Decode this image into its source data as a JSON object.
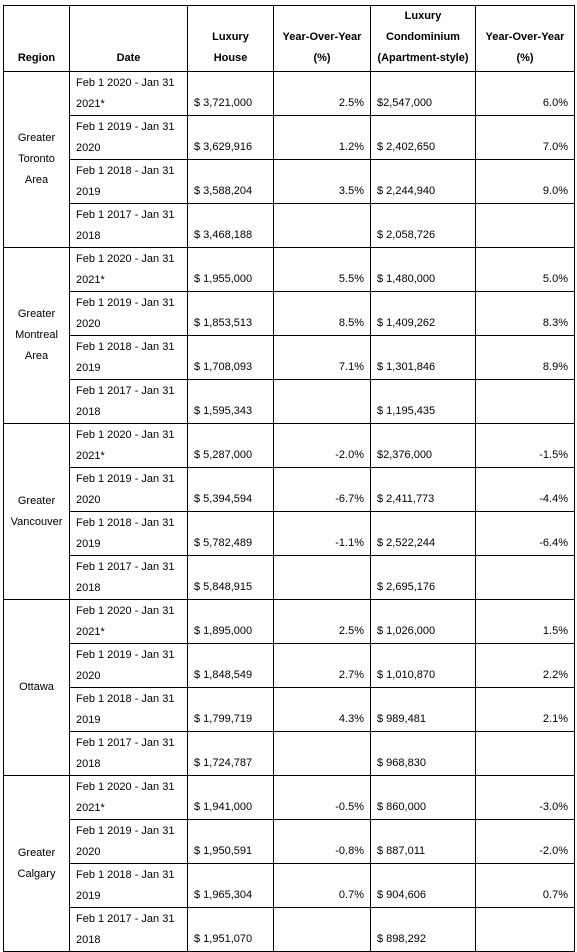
{
  "headers": {
    "region": "Region",
    "date": "Date",
    "house": "Luxury House",
    "house_yoy": [
      "Year-Over-Year",
      "(%)"
    ],
    "condo": [
      "Luxury",
      "Condominium",
      "(Apartment-style)"
    ],
    "condo_yoy": [
      "Year-Over-Year",
      "(%)"
    ]
  },
  "regions": [
    {
      "name": [
        "Greater",
        "Toronto",
        "Area"
      ],
      "rows": [
        {
          "date": [
            "Feb 1 2020 - Jan 31",
            "2021*"
          ],
          "house": "$ 3,721,000",
          "house_yoy": "2.5%",
          "condo": "$2,547,000",
          "condo_yoy": "6.0%"
        },
        {
          "date": [
            "Feb 1 2019 - Jan 31",
            "2020"
          ],
          "house": "$ 3,629,916",
          "house_yoy": "1.2%",
          "condo": "$ 2,402,650",
          "condo_yoy": "7.0%"
        },
        {
          "date": [
            "Feb 1 2018 - Jan 31",
            "2019"
          ],
          "house": "$ 3,588,204",
          "house_yoy": "3.5%",
          "condo": "$ 2,244,940",
          "condo_yoy": "9.0%"
        },
        {
          "date": [
            "Feb 1 2017 - Jan 31",
            "2018"
          ],
          "house": "$ 3,468,188",
          "house_yoy": "",
          "condo": "$ 2,058,726",
          "condo_yoy": ""
        }
      ]
    },
    {
      "name": [
        "Greater",
        "Montreal",
        "Area"
      ],
      "rows": [
        {
          "date": [
            "Feb 1 2020 - Jan 31",
            "2021*"
          ],
          "house": "$ 1,955,000",
          "house_yoy": "5.5%",
          "condo": "$ 1,480,000",
          "condo_yoy": "5.0%"
        },
        {
          "date": [
            "Feb 1 2019 - Jan 31",
            "2020"
          ],
          "house": "$ 1,853,513",
          "house_yoy": "8.5%",
          "condo": "$ 1,409,262",
          "condo_yoy": "8.3%"
        },
        {
          "date": [
            "Feb 1 2018 - Jan 31",
            "2019"
          ],
          "house": "$ 1,708,093",
          "house_yoy": "7.1%",
          "condo": "$ 1,301,846",
          "condo_yoy": "8.9%"
        },
        {
          "date": [
            "Feb 1 2017 - Jan 31",
            "2018"
          ],
          "house": "$ 1,595,343",
          "house_yoy": "",
          "condo": "$ 1,195,435",
          "condo_yoy": ""
        }
      ]
    },
    {
      "name": [
        "Greater",
        "Vancouver"
      ],
      "rows": [
        {
          "date": [
            "Feb 1 2020 - Jan 31",
            "2021*"
          ],
          "house": "$ 5,287,000",
          "house_yoy": "-2.0%",
          "condo": "$2,376,000",
          "condo_yoy": "-1.5%"
        },
        {
          "date": [
            "Feb 1 2019 - Jan 31",
            "2020"
          ],
          "house": "$ 5,394,594",
          "house_yoy": "-6.7%",
          "condo": "$ 2,411,773",
          "condo_yoy": "-4.4%"
        },
        {
          "date": [
            "Feb 1 2018 - Jan 31",
            "2019"
          ],
          "house": "$ 5,782,489",
          "house_yoy": "-1.1%",
          "condo": "$ 2,522,244",
          "condo_yoy": "-6.4%"
        },
        {
          "date": [
            "Feb 1 2017 - Jan 31",
            "2018"
          ],
          "house": "$ 5,848,915",
          "house_yoy": "",
          "condo": "$ 2,695,176",
          "condo_yoy": ""
        }
      ]
    },
    {
      "name": [
        "Ottawa"
      ],
      "rows": [
        {
          "date": [
            "Feb 1 2020 - Jan 31",
            "2021*"
          ],
          "house": "$ 1,895,000",
          "house_yoy": "2.5%",
          "condo": "$ 1,026,000",
          "condo_yoy": "1.5%"
        },
        {
          "date": [
            "Feb 1 2019 - Jan 31",
            "2020"
          ],
          "house": "$ 1,848,549",
          "house_yoy": "2.7%",
          "condo": "$ 1,010,870",
          "condo_yoy": "2.2%"
        },
        {
          "date": [
            "Feb 1 2018 - Jan 31",
            "2019"
          ],
          "house": "$ 1,799,719",
          "house_yoy": "4.3%",
          "condo": "$ 989,481",
          "condo_yoy": "2.1%"
        },
        {
          "date": [
            "Feb 1 2017 - Jan 31",
            "2018"
          ],
          "house": "$ 1,724,787",
          "house_yoy": "",
          "condo": "$ 968,830",
          "condo_yoy": ""
        }
      ]
    },
    {
      "name": [
        "Greater",
        "Calgary"
      ],
      "rows": [
        {
          "date": [
            "Feb 1 2020 - Jan 31",
            "2021*"
          ],
          "house": "$ 1,941,000",
          "house_yoy": "-0.5%",
          "condo": "$ 860,000",
          "condo_yoy": "-3.0%"
        },
        {
          "date": [
            "Feb 1 2019 - Jan 31",
            "2020"
          ],
          "house": "$ 1,950,591",
          "house_yoy": "-0.8%",
          "condo": "$ 887,011",
          "condo_yoy": "-2.0%"
        },
        {
          "date": [
            "Feb 1 2018 - Jan 31",
            "2019"
          ],
          "house": "$ 1,965,304",
          "house_yoy": "0.7%",
          "condo": "$ 904,606",
          "condo_yoy": "0.7%"
        },
        {
          "date": [
            "Feb 1 2017 - Jan 31",
            "2018"
          ],
          "house": "$ 1,951,070",
          "house_yoy": "",
          "condo": "$ 898,292",
          "condo_yoy": ""
        }
      ]
    }
  ]
}
